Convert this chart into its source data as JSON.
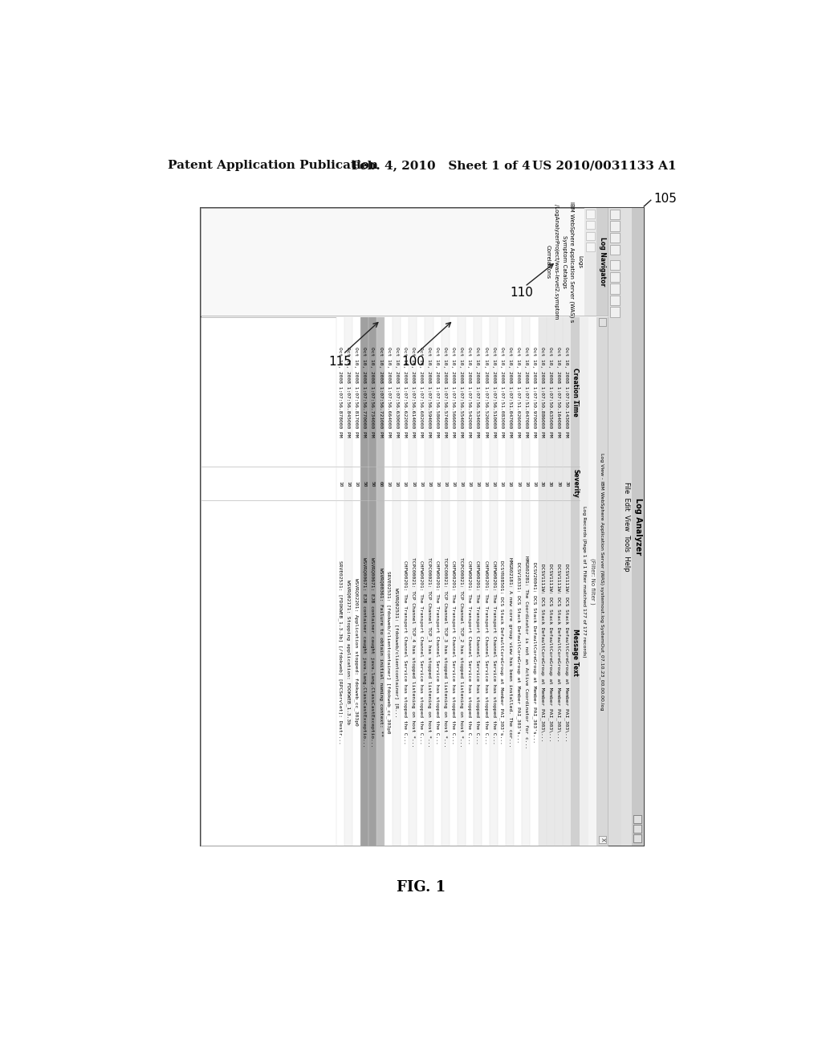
{
  "header_left": "Patent Application Publication",
  "header_mid": "Feb. 4, 2010   Sheet 1 of 4",
  "header_right": "US 2010/0031133 A1",
  "fig_label": "FIG. 1",
  "ref_105": "105",
  "ref_110": "110",
  "ref_100": "100",
  "ref_115": "115",
  "bg_color": "#ffffff",
  "log_analyzer_title": "Log Analyzer",
  "menu_items": "File  Edit  View  Tools  Help",
  "nav_label": "Log Navigator",
  "tree_items": [
    "Logs",
    "IBM WebSphere Application Server (WAS) s",
    "Symptom Catalogs",
    "/LogAnalyzerProject/was-level2.symptom",
    "Correlations"
  ],
  "log_view_title": "Log View - IBM WebSphere Application Server (WAS) systemout.log SystemOut_07.10.23_00.00.00.log",
  "filter_text": "(Filter: No filter )",
  "log_records_text": "Log Records (Page 1 of 1 Filter matched 177 of 177 records)",
  "col_headers": [
    "Creation Time",
    "Severity",
    "Message Text"
  ],
  "log_entries": [
    [
      "Oct 10, 2008 1:07:50.143000 PM",
      "30",
      "DCSV1111W: DCS Stack DefaultCoreGroup at Member PAI_303\\..."
    ],
    [
      "Oct 10, 2008 1:07:50.164000 PM",
      "30",
      "DCSV1111W: DCS Stack DefaultCoreGroup at Member PAI_303\\..."
    ],
    [
      "Oct 10, 2008 1:07:50.635000 PM",
      "30",
      "DCSV1111W: DCS Stack DefaultCoreGroup at Member PAI_303\\..."
    ],
    [
      "Oct 10, 2008 1:07:50.886000 PM",
      "30",
      "DCSV1111W: DCS Stack DefaultCoreGroup at Member PAI_303\\..."
    ],
    [
      "Oct 10, 2008 1:07:50.970000 PM",
      "10",
      "DCSV20041: DCS Stack DefaultCoreGroup at Member PAI_303's..."
    ],
    [
      "Oct 10, 2008 1:07:51.047000 PM",
      "10",
      "HMGR02281: The Coordinator is not an Active Coordinator for c..."
    ],
    [
      "Oct 10, 2008 1:07:51.026000 PM",
      "10",
      "DCSV10331: DCS Stack DefaultCoreGroup at Member PAI_303's..."
    ],
    [
      "Oct 10, 2008 1:07:51.047000 PM",
      "10",
      "HMGR02181: A new core group view has been installed. The cor..."
    ],
    [
      "Oct 10, 2008 1:07:51.083000 PM",
      "10",
      "DCSYR08501: DCS Stack DefaultCoreGroup at Member PAI_303's..."
    ],
    [
      "Oct 10, 2008 1:07:56.510000 PM",
      "10",
      "CHFW00201: The Transport Channel Service has stopped the C..."
    ],
    [
      "Oct 10, 2008 1:07:56.526000 PM",
      "10",
      "CHFW00201: The Transport Channel Service has stopped the C..."
    ],
    [
      "Oct 10, 2008 1:07:56.534000 PM",
      "10",
      "CHFW00201: The Transport Channel Service has stopped the C..."
    ],
    [
      "Oct 10, 2008 1:07:56.542000 PM",
      "10",
      "CHFW00201: The Transport Channel Service has stopped the C..."
    ],
    [
      "Oct 10, 2008 1:07:56.554000 PM",
      "10",
      "TCPC00021: TCP Channel TCP_2 has stopped listening on host *..."
    ],
    [
      "Oct 10, 2008 1:07:56.566000 PM",
      "10",
      "CHFW00201: The Transport Channel Service has stopped the C..."
    ],
    [
      "Oct 10, 2008 1:07:56.574000 PM",
      "10",
      "TCPC00021: TCP Channel TCP_3 has stopped listening on host *..."
    ],
    [
      "Oct 10, 2008 1:07:56.586000 PM",
      "10",
      "CHFW00201: The Transport Channel Service has stopped the C..."
    ],
    [
      "Oct 10, 2008 1:07:56.594000 PM",
      "10",
      "TCPC00021: TCP Channel TCP_1 has stopped listening on host *..."
    ],
    [
      "Oct 10, 2008 1:07:56.602000 PM",
      "10",
      "CHFW00201: The Transport Channel Service has stopped the C..."
    ],
    [
      "Oct 10, 2008 1:07:56.614000 PM",
      "10",
      "TCPC00021: TCP Channel TCP_4 has stopped listening on host *..."
    ],
    [
      "Oct 10, 2008 1:07:56.622000 PM",
      "10",
      "CHFW00201: The Transport Channel Service has stopped the C..."
    ],
    [
      "Oct 10, 2008 1:07:56.630000 PM",
      "10",
      "WSVRQ02531: [fdokweb/clientcontainer] [R..."
    ],
    [
      "Oct 10, 2008 1:07:56.664000 PM",
      "10",
      "SRVE02531: [fdokweb/clientcontainer] [fdokweb_cc_303p0"
    ],
    [
      "Oct 10, 2008 1:07:56.721000 PM",
      "60",
      "WSVRQ00361: Failure to obtain initial naming context: **"
    ],
    [
      "Oct 10, 2008 1:07:56.734000 PM",
      "50",
      "WSVRQ00671: EJB container caught java.lang.ClassCastExceptio..."
    ],
    [
      "Oct 10, 2008 1:07:56.770000 PM",
      "50",
      "WSVRQ00671: EJB container caught java.lang.ClassCastExceptio..."
    ],
    [
      "Oct 10, 2008 1:07:56.817000 PM",
      "10",
      "WSVRQ02201: Application stopped: fdokweb_cc_303p0"
    ],
    [
      "Oct 10, 2008 1:07:56.845000 PM",
      "10",
      "WSVRQ02171: Stopping application: FDOKWEB_1.3.3b"
    ],
    [
      "Oct 10, 2008 1:07:56.878000 PM",
      "10",
      "SRVE02531: [FDOKWEB_1.3.3b] [/fdokweb] [RPCServlet]: Destr..."
    ]
  ]
}
